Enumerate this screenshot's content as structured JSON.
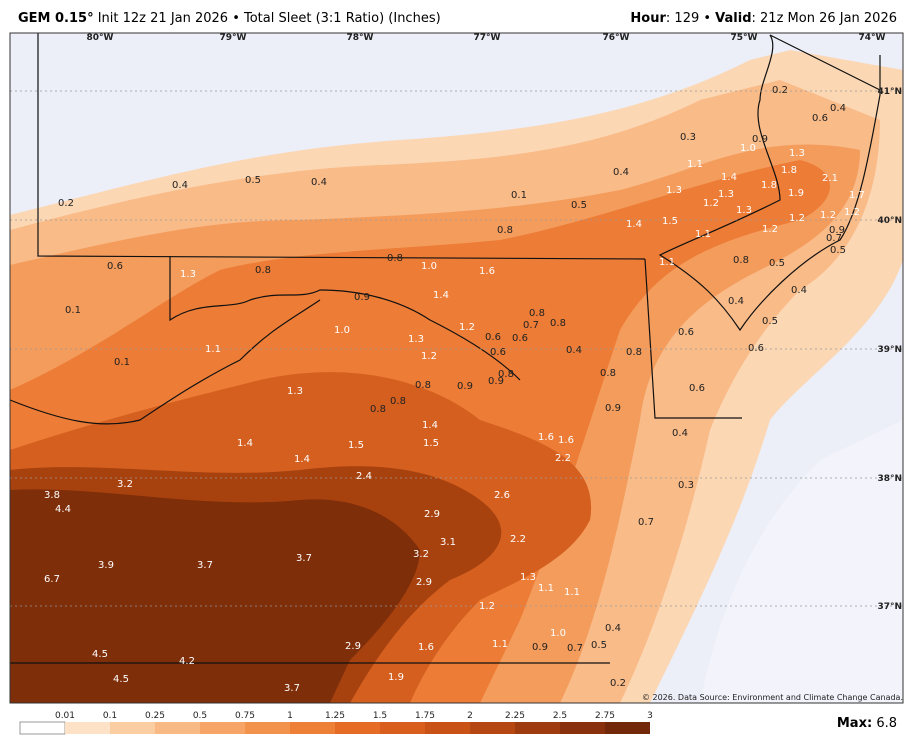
{
  "header": {
    "left": [
      {
        "text": "GEM 0.15°",
        "bold": true
      },
      {
        "text": " Init 12z 21 Jan 2026 • Total Sleet (3:1 Ratio) (Inches)",
        "bold": false
      }
    ],
    "right": [
      {
        "text": "Hour",
        "bold": true
      },
      {
        "text": ": 129 • ",
        "bold": false
      },
      {
        "text": "Valid",
        "bold": true
      },
      {
        "text": ": 21z Mon 26 Jan 2026",
        "bold": false
      }
    ]
  },
  "map": {
    "longitudes": [
      "80°W",
      "79°W",
      "78°W",
      "77°W",
      "76°W",
      "75°W",
      "74°W"
    ],
    "latitudes": [
      "41°N",
      "40°N",
      "39°N",
      "38°N",
      "37°N"
    ],
    "labels": [
      "0.2",
      "0.4",
      "0.5",
      "0.4",
      "0.1",
      "0.5",
      "0.4",
      "0.3",
      "0.2",
      "0.6",
      "0.4",
      "0.9",
      "1.0",
      "1.3",
      "1.1",
      "1.4",
      "1.8",
      "1.8",
      "1.9",
      "2.1",
      "1.7",
      "1.3",
      "1.3",
      "1.2",
      "1.3",
      "1.2",
      "1.2",
      "1.2",
      "1.4",
      "1.5",
      "0.8",
      "1.1",
      "1.2",
      "0.9",
      "0.7",
      "0.5",
      "1.1",
      "0.8",
      "0.5",
      "0.6",
      "1.3",
      "0.8",
      "0.8",
      "1.0",
      "1.6",
      "0.1",
      "0.9",
      "1.4",
      "1.0",
      "1.2",
      "0.8",
      "0.7",
      "0.8",
      "0.6",
      "0.6",
      "1.3",
      "1.2",
      "0.6",
      "0.4",
      "0.4",
      "0.5",
      "0.6",
      "0.6",
      "1.1",
      "0.1",
      "0.8",
      "0.4",
      "0.8",
      "0.6",
      "0.9",
      "0.9",
      "0.8",
      "0.8",
      "1.3",
      "0.8",
      "0.8",
      "0.9",
      "1.4",
      "1.6",
      "1.6",
      "1.5",
      "0.4",
      "1.4",
      "1.5",
      "1.4",
      "2.2",
      "2.4",
      "3.2",
      "3.8",
      "4.4",
      "0.3",
      "2.6",
      "2.9",
      "0.7",
      "3.1",
      "2.2",
      "3.2",
      "3.7",
      "3.9",
      "3.7",
      "6.7",
      "2.9",
      "1.3",
      "1.1",
      "1.1",
      "1.2",
      "0.4",
      "1.0",
      "0.5",
      "1.1",
      "0.9",
      "0.7",
      "2.9",
      "1.6",
      "4.5",
      "4.2",
      "1.9",
      "4.5",
      "3.7",
      "0.2"
    ],
    "copyright": "© 2026. Data Source: Environment and Climate Change Canada."
  },
  "legend": {
    "ticks": [
      0.01,
      0.1,
      0.25,
      0.5,
      0.75,
      1,
      1.25,
      1.5,
      1.75,
      2,
      2.25,
      2.5,
      2.75,
      3
    ],
    "colors": [
      "#ffffff",
      "#fde2c8",
      "#fbcda3",
      "#f9b984",
      "#f7a566",
      "#f3924d",
      "#ee7f37",
      "#e66c26",
      "#d95e1d",
      "#c95317",
      "#b54713",
      "#9e3c0f",
      "#88310c",
      "#732809"
    ]
  },
  "max": {
    "label": "Max:",
    "value": "6.8"
  }
}
